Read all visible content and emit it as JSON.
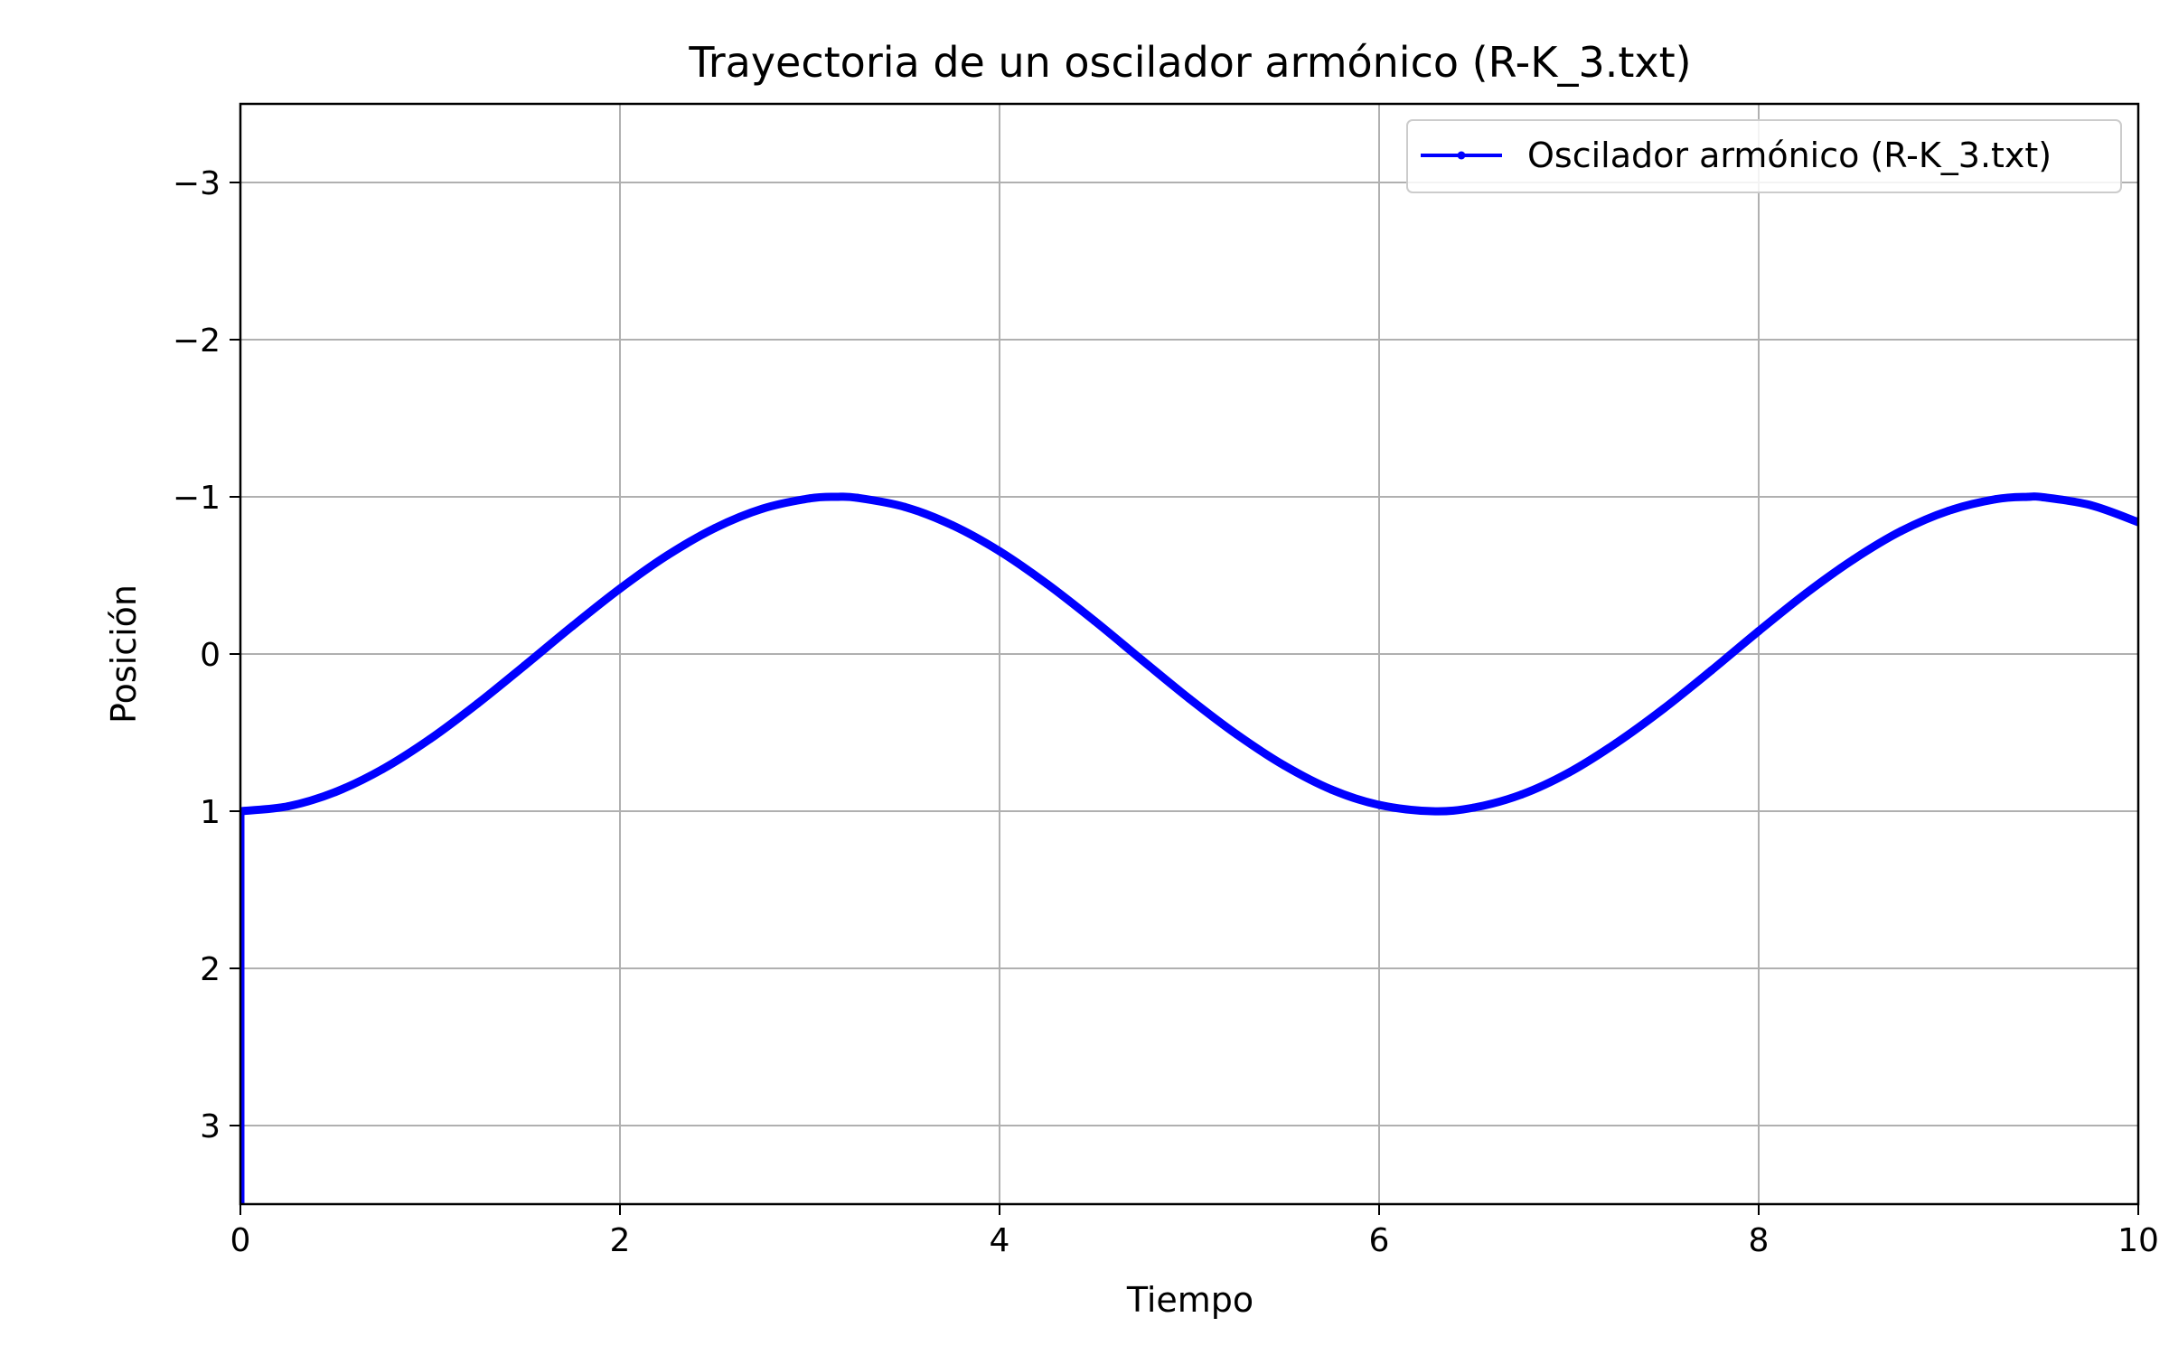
{
  "chart_data": {
    "type": "line",
    "title": "Trayectoria de un oscilador armónico (R-K_3.txt)",
    "xlabel": "Tiempo",
    "ylabel": "Posición",
    "xlim": [
      0,
      10
    ],
    "ylim": [
      3.5,
      -3.5
    ],
    "y_inverted": true,
    "xticks": [
      0,
      2,
      4,
      6,
      8,
      10
    ],
    "xtick_labels": [
      "0",
      "2",
      "4",
      "6",
      "8",
      "10"
    ],
    "yticks": [
      -3,
      -2,
      -1,
      0,
      1,
      2,
      3
    ],
    "ytick_labels": [
      "−3",
      "−2",
      "−1",
      "0",
      "1",
      "2",
      "3"
    ],
    "grid": true,
    "legend_position": "top-right",
    "series": [
      {
        "name": "Oscilador armónico (R-K_3.txt)",
        "color": "#0000ff",
        "marker": "point",
        "x": [
          0,
          0,
          0.25,
          0.5,
          0.75,
          1,
          1.25,
          1.5,
          1.75,
          2,
          2.25,
          2.5,
          2.75,
          3,
          3.14,
          3.25,
          3.5,
          3.75,
          4,
          4.25,
          4.5,
          4.75,
          5,
          5.25,
          5.5,
          5.75,
          6,
          6.28,
          6.5,
          6.75,
          7,
          7.25,
          7.5,
          7.75,
          8,
          8.25,
          8.5,
          8.75,
          9,
          9.25,
          9.42,
          9.5,
          9.75,
          10
        ],
        "y": [
          3.5,
          1,
          0.969,
          0.878,
          0.732,
          0.54,
          0.315,
          0.071,
          -0.178,
          -0.416,
          -0.628,
          -0.801,
          -0.924,
          -0.99,
          -1,
          -0.994,
          -0.936,
          -0.82,
          -0.654,
          -0.446,
          -0.211,
          0.038,
          0.284,
          0.512,
          0.709,
          0.863,
          0.96,
          1,
          0.977,
          0.894,
          0.754,
          0.566,
          0.347,
          0.105,
          -0.146,
          -0.387,
          -0.602,
          -0.782,
          -0.911,
          -0.985,
          -1,
          -0.997,
          -0.947,
          -0.839
        ]
      }
    ]
  }
}
